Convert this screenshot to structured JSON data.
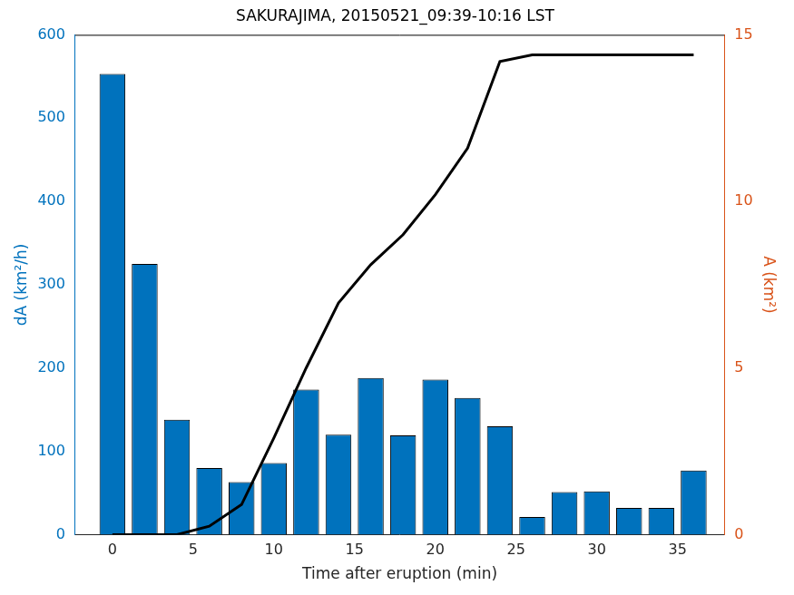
{
  "chart_data": {
    "type": "bar",
    "title": "SAKURAJIMA, 20150521_09:39-10:16 LST",
    "x_label": "Time after eruption (min)",
    "y_label": "dA (km²/h)",
    "y2_label": "A (km²)",
    "x": [
      0,
      2,
      4,
      6,
      8,
      10,
      12,
      14,
      16,
      18,
      20,
      22,
      24,
      26,
      28,
      30,
      32,
      34,
      36
    ],
    "series": [
      {
        "type": "bar",
        "color": "#0072bd",
        "values": [
          553,
          325,
          138,
          80,
          63,
          86,
          174,
          120,
          188,
          119,
          186,
          164,
          130,
          21,
          51,
          52,
          32,
          32,
          77
        ]
      },
      {
        "type": "line",
        "axis": "y2",
        "color": "#000000",
        "values": [
          0,
          0,
          0,
          0.25,
          0.9,
          2.9,
          5.0,
          6.95,
          8.1,
          9.0,
          10.2,
          11.6,
          14.2,
          14.4,
          14.4,
          14.4,
          14.4,
          14.4,
          14.4
        ]
      }
    ],
    "xlim": [
      -2.3,
      37.9
    ],
    "xticks": [
      0,
      5,
      10,
      15,
      20,
      25,
      30,
      35
    ],
    "ylim": [
      0,
      600
    ],
    "yticks": [
      0,
      100,
      200,
      300,
      400,
      500,
      600
    ],
    "y2lim": [
      0,
      15
    ],
    "y2ticks": [
      0,
      5,
      10,
      15
    ],
    "grid": false
  }
}
